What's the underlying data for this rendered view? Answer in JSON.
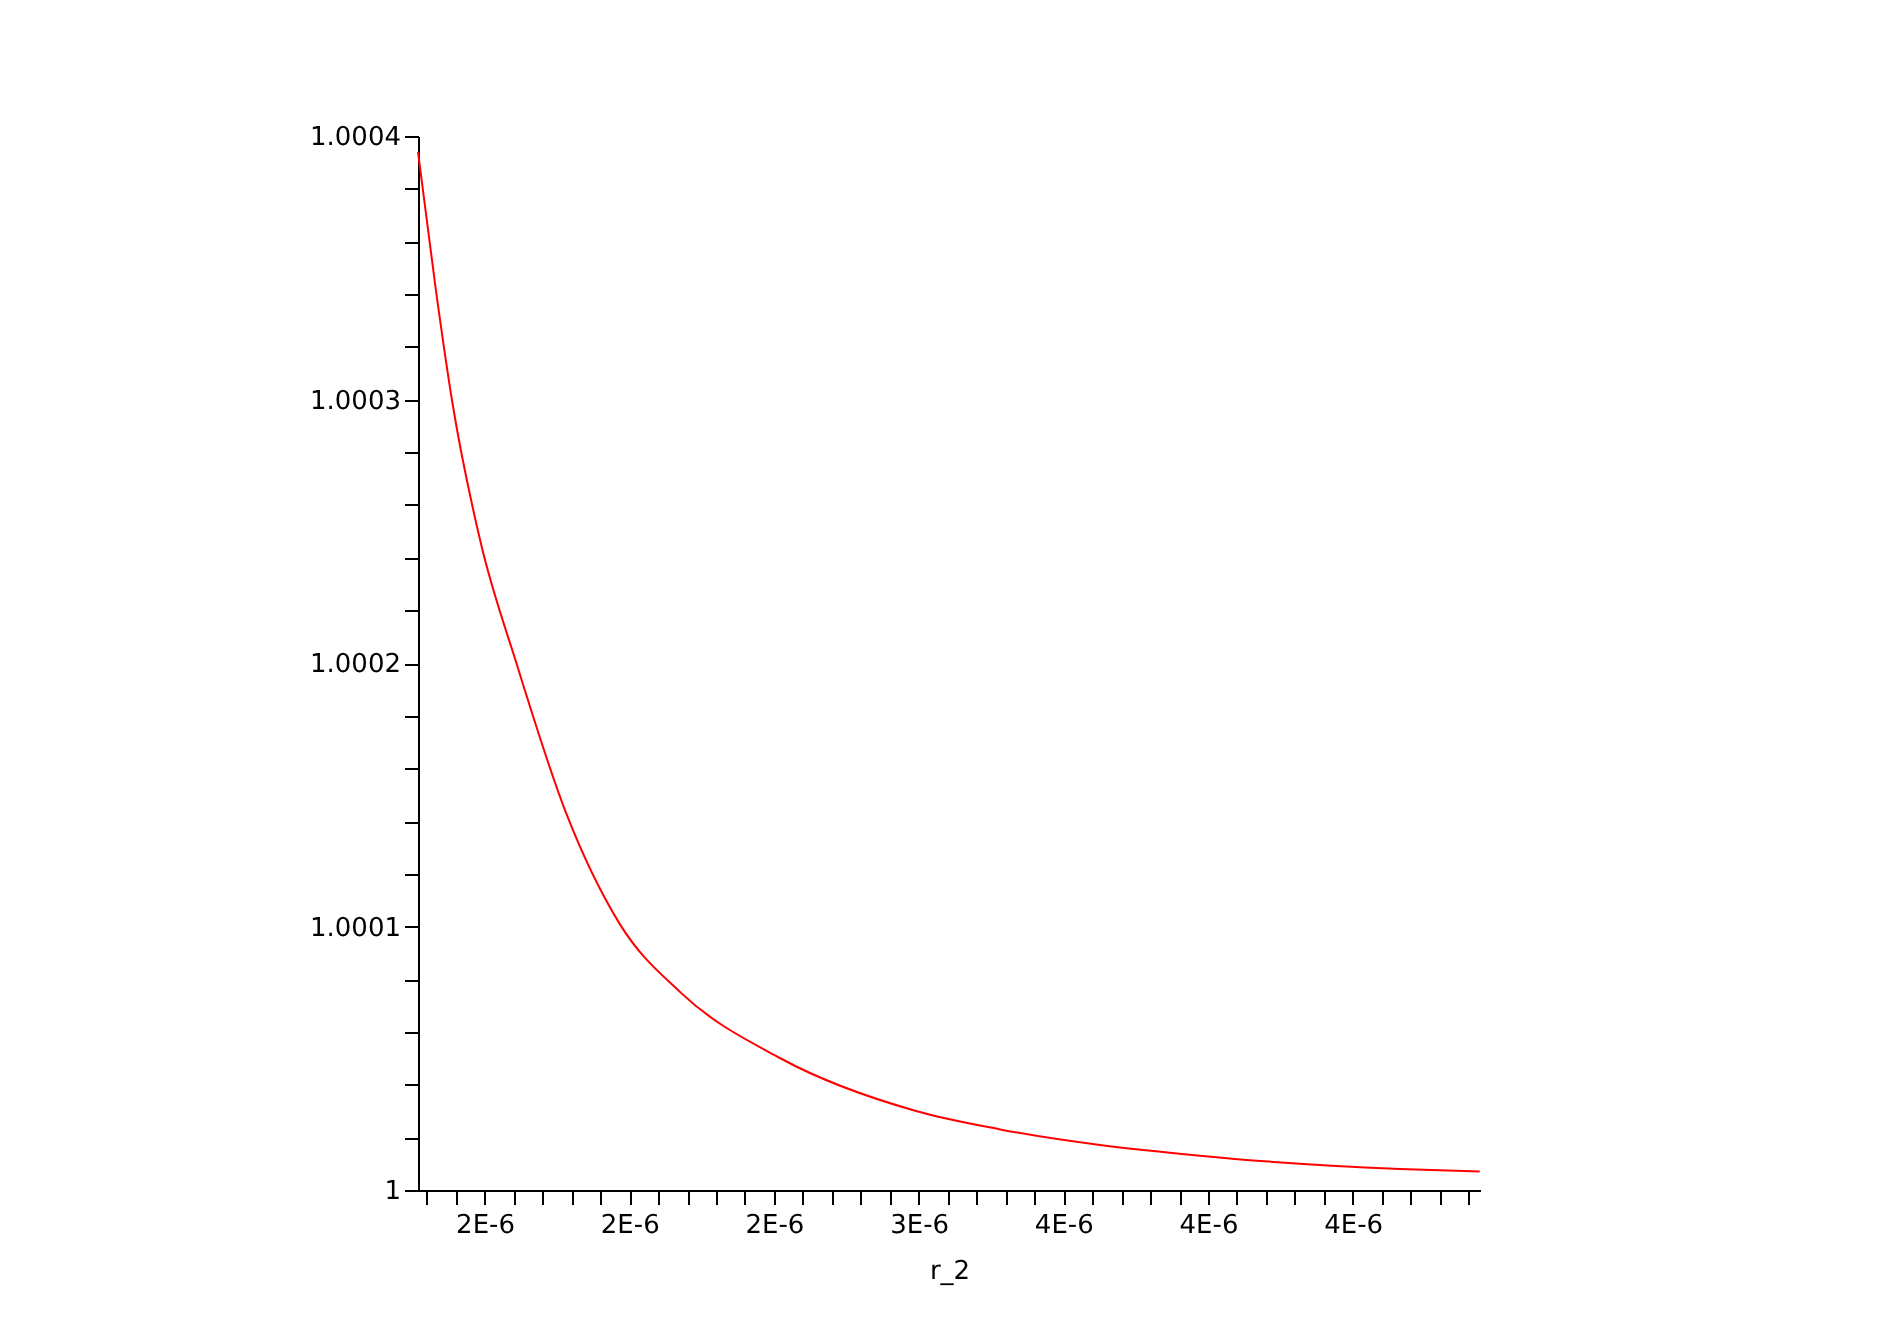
{
  "chart_data": {
    "type": "line",
    "xlabel": "r_2",
    "x": [
      1.27e-06,
      1.33e-06,
      1.387e-06,
      1.486e-06,
      1.61e-06,
      1.782e-06,
      1.967e-06,
      2.177e-06,
      2.522e-06,
      2.991e-06,
      3.282e-06,
      3.972e-06,
      4.663e-06,
      4.939e-06
    ],
    "series": [
      {
        "color": "#ff0000",
        "values": [
          1.000394,
          1.000343,
          1.0003,
          1.000246,
          1.0002,
          1.000143,
          1.000101,
          1.000075,
          1.00005,
          1.00003,
          1.000023,
          1.000013,
          1.000008,
          1.000007
        ]
      }
    ],
    "xlim": [
      1.27e-06,
      4.94e-06
    ],
    "xticks": [
      {
        "value": 1.3e-06,
        "label": null
      },
      {
        "value": 1.4e-06,
        "label": null
      },
      {
        "value": 1.5e-06,
        "label": "2E-6"
      },
      {
        "value": 1.6e-06,
        "label": null
      },
      {
        "value": 1.7e-06,
        "label": null
      },
      {
        "value": 1.8e-06,
        "label": null
      },
      {
        "value": 1.9e-06,
        "label": null
      },
      {
        "value": 2e-06,
        "label": "2E-6"
      },
      {
        "value": 2.1e-06,
        "label": null
      },
      {
        "value": 2.2e-06,
        "label": null
      },
      {
        "value": 2.3e-06,
        "label": null
      },
      {
        "value": 2.4e-06,
        "label": null
      },
      {
        "value": 2.5e-06,
        "label": "2E-6"
      },
      {
        "value": 2.6e-06,
        "label": null
      },
      {
        "value": 2.7e-06,
        "label": null
      },
      {
        "value": 2.8e-06,
        "label": null
      },
      {
        "value": 2.9e-06,
        "label": null
      },
      {
        "value": 3e-06,
        "label": "3E-6"
      },
      {
        "value": 3.1e-06,
        "label": null
      },
      {
        "value": 3.2e-06,
        "label": null
      },
      {
        "value": 3.3e-06,
        "label": null
      },
      {
        "value": 3.4e-06,
        "label": null
      },
      {
        "value": 3.5e-06,
        "label": "4E-6"
      },
      {
        "value": 3.6e-06,
        "label": null
      },
      {
        "value": 3.7e-06,
        "label": null
      },
      {
        "value": 3.8e-06,
        "label": null
      },
      {
        "value": 3.9e-06,
        "label": null
      },
      {
        "value": 4e-06,
        "label": "4E-6"
      },
      {
        "value": 4.1e-06,
        "label": null
      },
      {
        "value": 4.2e-06,
        "label": null
      },
      {
        "value": 4.3e-06,
        "label": null
      },
      {
        "value": 4.4e-06,
        "label": null
      },
      {
        "value": 4.5e-06,
        "label": "4E-6"
      },
      {
        "value": 4.6e-06,
        "label": null
      },
      {
        "value": 4.7e-06,
        "label": null
      },
      {
        "value": 4.8e-06,
        "label": null
      },
      {
        "value": 4.9e-06,
        "label": null
      }
    ],
    "ylim": [
      1,
      1.0004
    ],
    "yticks": [
      {
        "value": 1,
        "label": "1"
      },
      {
        "value": 1.00002,
        "label": null
      },
      {
        "value": 1.00004,
        "label": null
      },
      {
        "value": 1.00006,
        "label": null
      },
      {
        "value": 1.00008,
        "label": null
      },
      {
        "value": 1.0001,
        "label": "1.0001"
      },
      {
        "value": 1.00012,
        "label": null
      },
      {
        "value": 1.00014,
        "label": null
      },
      {
        "value": 1.00016,
        "label": null
      },
      {
        "value": 1.00018,
        "label": null
      },
      {
        "value": 1.0002,
        "label": "1.0002"
      },
      {
        "value": 1.00022,
        "label": null
      },
      {
        "value": 1.00024,
        "label": null
      },
      {
        "value": 1.00026,
        "label": null
      },
      {
        "value": 1.00028,
        "label": null
      },
      {
        "value": 1.0003,
        "label": "1.0003"
      },
      {
        "value": 1.00032,
        "label": null
      },
      {
        "value": 1.00034,
        "label": null
      },
      {
        "value": 1.00036,
        "label": null
      },
      {
        "value": 1.00038,
        "label": null
      },
      {
        "value": 1.0004,
        "label": "1.0004"
      }
    ],
    "grid": false,
    "marker": "none",
    "line_style": "solid"
  }
}
